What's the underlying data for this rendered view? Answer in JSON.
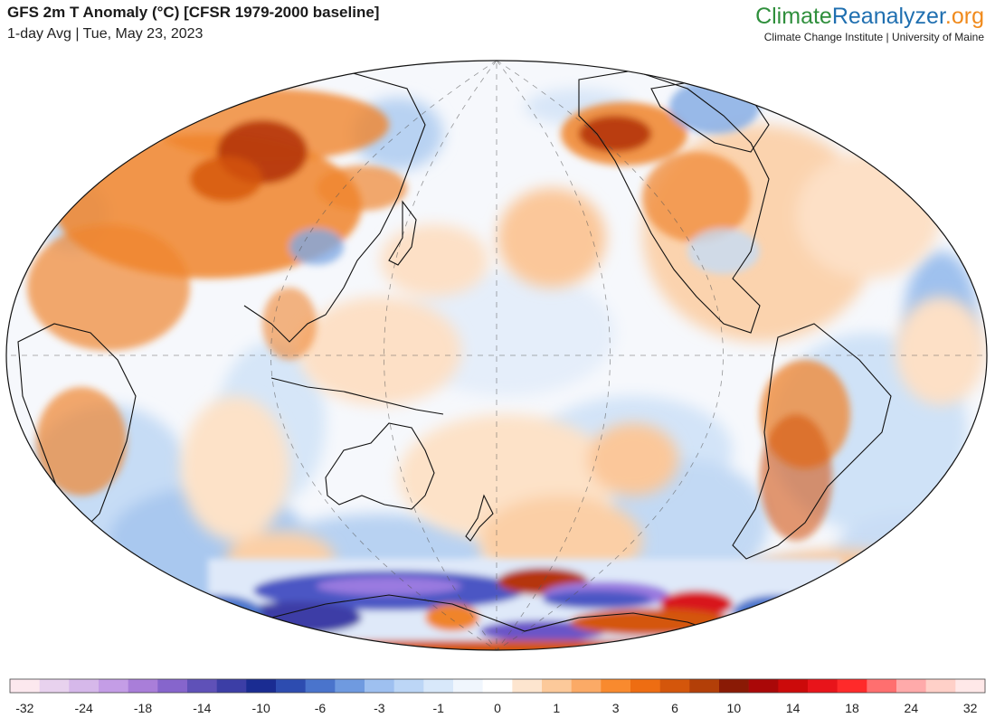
{
  "header": {
    "title": "GFS 2m T Anomaly (°C) [CFSR 1979-2000 baseline]",
    "subtitle": "1-day Avg | Tue, May 23, 2023"
  },
  "brand": {
    "name_part1": "Climate",
    "name_part2": "Reanalyzer",
    "name_part3": ".org",
    "subtitle": "Climate Change Institute | University of Maine",
    "colors": {
      "part1": "#2f8f3c",
      "part2": "#1f6fb0",
      "part3": "#f08a1c"
    }
  },
  "colorbar": {
    "colors": [
      "#fce8ee",
      "#e8d2ee",
      "#d6b8ea",
      "#c49de6",
      "#a97ed9",
      "#8665cc",
      "#5f51b8",
      "#3c3ea6",
      "#1a2c92",
      "#2d4cb0",
      "#4a74cc",
      "#6f9ae0",
      "#9ec0f0",
      "#bcd6f6",
      "#d8e8fa",
      "#f0f6fd",
      "#ffffff",
      "#fde5cf",
      "#fcc99a",
      "#fbaa66",
      "#f98a2e",
      "#ee6d12",
      "#d4560b",
      "#b33f08",
      "#8a1a05",
      "#aa0808",
      "#cc0a0a",
      "#e8141a",
      "#ff2a2a",
      "#ff6f6f",
      "#ffaaaa",
      "#ffd0c8",
      "#ffe8e8"
    ],
    "labels": [
      "-32",
      "-24",
      "-18",
      "-14",
      "-10",
      "-6",
      "-3",
      "-1",
      "0",
      "1",
      "3",
      "6",
      "10",
      "14",
      "18",
      "24",
      "32"
    ]
  },
  "map": {
    "projection": "Robinson-like (Pacific-centered)",
    "anomaly_colors": {
      "strong_warm": "#b5340a",
      "warm": "#f0842c",
      "mild_warm": "#fbc79a",
      "neutral": "#f6f8fc",
      "mild_cool": "#c6dcf5",
      "cool": "#7fa9e3",
      "cold": "#4b57c4",
      "very_cold": "#9a7ae0",
      "hot_extreme": "#d8141a"
    }
  }
}
